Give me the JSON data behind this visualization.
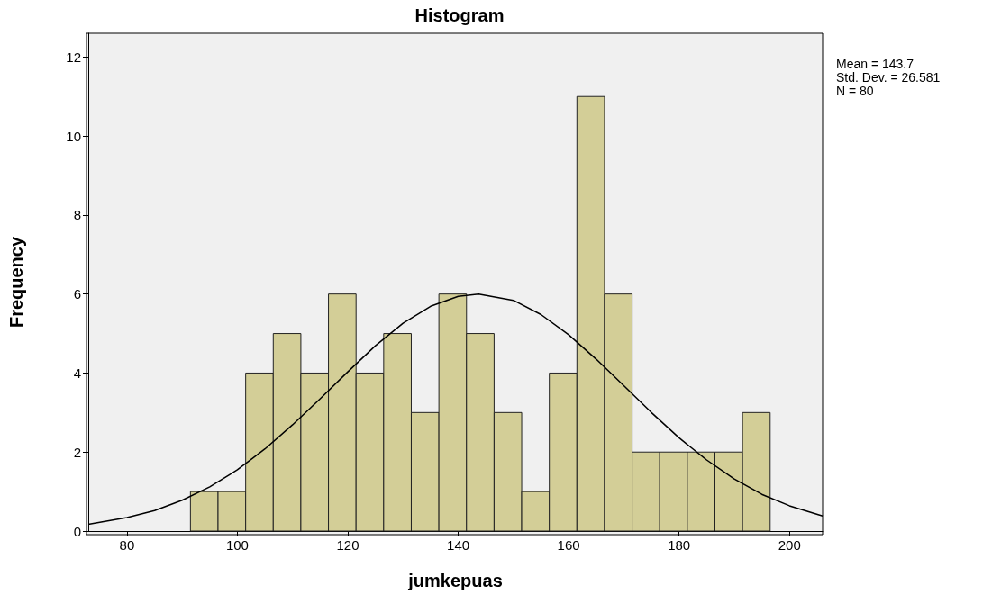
{
  "chart_data": {
    "type": "histogram",
    "title": "Histogram",
    "xlabel": "jumkepuas",
    "ylabel": "Frequency",
    "bins": [
      91.5,
      96.5,
      101.5,
      106.5,
      111.5,
      116.5,
      121.5,
      126.5,
      131.5,
      136.5,
      141.5,
      146.5,
      151.5,
      156.5,
      161.5,
      166.5,
      171.5,
      176.5,
      181.5,
      186.5,
      191.5,
      196.5
    ],
    "values": [
      1,
      1,
      4,
      5,
      4,
      6,
      4,
      5,
      3,
      6,
      5,
      3,
      1,
      4,
      11,
      6,
      2,
      2,
      2,
      2,
      3
    ],
    "color": "#d3ce97",
    "series": [
      {
        "type": "line",
        "color": "#000000",
        "x": [
          73,
          80,
          85,
          90,
          95,
          100,
          105,
          110,
          115,
          120,
          125,
          130,
          135,
          140,
          143.7,
          150,
          155,
          160,
          165,
          170,
          175,
          180,
          185,
          190,
          195,
          200,
          206
        ],
        "values": [
          0.17,
          0.34,
          0.52,
          0.78,
          1.12,
          1.55,
          2.08,
          2.69,
          3.35,
          4.03,
          4.69,
          5.26,
          5.69,
          5.94,
          6.0,
          5.84,
          5.48,
          4.97,
          4.35,
          3.68,
          3.0,
          2.36,
          1.8,
          1.32,
          0.93,
          0.64,
          0.38
        ]
      }
    ],
    "xlim": [
      73,
      206
    ],
    "xticks": [
      80,
      100,
      120,
      140,
      160,
      180,
      200
    ],
    "ylim": [
      0,
      12.6
    ],
    "yticks": [
      0,
      2,
      4,
      6,
      8,
      10,
      12
    ],
    "grid": false,
    "legend": false,
    "marker": "none",
    "line_style": "solid",
    "annotations": [
      "Mean = 143.7",
      "Std. Dev. = 26.581",
      "N = 80"
    ]
  }
}
